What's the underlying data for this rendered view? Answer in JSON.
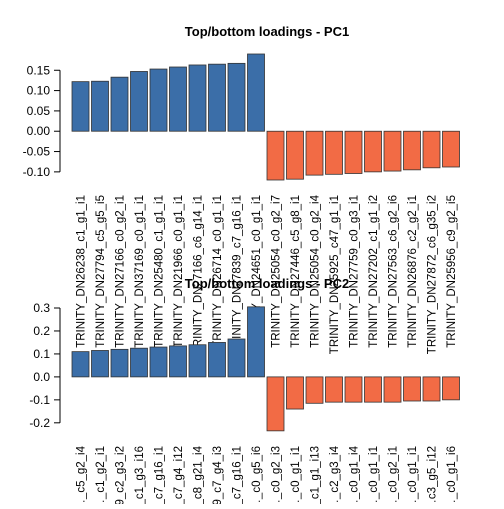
{
  "chart_data": [
    {
      "type": "bar",
      "title": "Top/bottom loadings - PC1",
      "xlabel": "",
      "ylabel": "",
      "ylim": [
        -0.12,
        0.19
      ],
      "yticks": [
        0.15,
        0.1,
        0.05,
        0.0,
        -0.05,
        -0.1
      ],
      "ytick_labels": [
        "0.15",
        "0.10",
        "0.05",
        "0.00",
        "-0.05",
        "-0.10"
      ],
      "grid": false,
      "colors": {
        "positive": "#3b6ea8",
        "negative": "#f26b45"
      },
      "categories": [
        "TRINITY_DN26238_c1_g1_i1",
        "TRINITY_DN27794_c5_g5_i5",
        "TRINITY_DN27166_c0_g2_i1",
        "TRINITY_DN37169_c0_g1_i1",
        "TRINITY_DN25480_c1_g1_i1",
        "TRINITY_DN21966_c0_g1_i1",
        "TRINITY_DN27166_c6_g14_i1",
        "TRINITY_DN26714_c0_g1_i1",
        "TRINITY_DN27839_c7_g16_i1",
        "TRINITY_DN24651_c0_g1_i1",
        "TRINITY_DN25054_c0_g2_i7",
        "TRINITY_DN27446_c5_g8_i1",
        "TRINITY_DN25054_c0_g2_i4",
        "TRINITY_DN25925_c47_g1_i1",
        "TRINITY_DN27759_c0_g3_i1",
        "TRINITY_DN27202_c1_g1_i2",
        "TRINITY_DN27563_c6_g2_i6",
        "TRINITY_DN26876_c2_g2_i1",
        "TRINITY_DN27872_c6_g35_i2",
        "TRINITY_DN25956_c9_g2_i5"
      ],
      "values": [
        0.122,
        0.123,
        0.133,
        0.147,
        0.153,
        0.158,
        0.163,
        0.165,
        0.167,
        0.19,
        -0.12,
        -0.118,
        -0.108,
        -0.106,
        -0.104,
        -0.1,
        -0.098,
        -0.095,
        -0.09,
        -0.088
      ]
    },
    {
      "type": "bar",
      "title": "Top/bottom loadings - PC2",
      "xlabel": "",
      "ylabel": "",
      "ylim": [
        -0.24,
        0.3
      ],
      "yticks": [
        0.3,
        0.2,
        0.1,
        0.0,
        -0.1,
        -0.2
      ],
      "ytick_labels": [
        "0.3",
        "0.2",
        "0.1",
        "0.0",
        "-0.1",
        "-0.2"
      ],
      "grid": false,
      "colors": {
        "positive": "#3b6ea8",
        "negative": "#f26b45"
      },
      "categories": [
        "…_c5_g2_i4",
        "…_c1_g2_i1",
        "…9_c2_g3_i2",
        "…_c1_g3_i16",
        "…_c7_g16_i1",
        "…_c7_g4_i12",
        "…_c8_g21_i4",
        "…9_c7_g4_i3",
        "…_c7_g16_i1",
        "…_c0_g5_i6",
        "…_c0_g2_i3",
        "…_c0_g1_i1",
        "…_c1_g1_i13",
        "…_c2_g3_i4",
        "…_c0_g1_i4",
        "…_c0_g1_i1",
        "…_c0_g2_i1",
        "…_c0_g1_i1",
        "…c3_g5_i12",
        "…_c0_g1_i6"
      ],
      "values": [
        0.11,
        0.115,
        0.12,
        0.125,
        0.13,
        0.135,
        0.14,
        0.15,
        0.165,
        0.305,
        -0.235,
        -0.14,
        -0.115,
        -0.11,
        -0.11,
        -0.11,
        -0.11,
        -0.105,
        -0.105,
        -0.1
      ]
    }
  ]
}
